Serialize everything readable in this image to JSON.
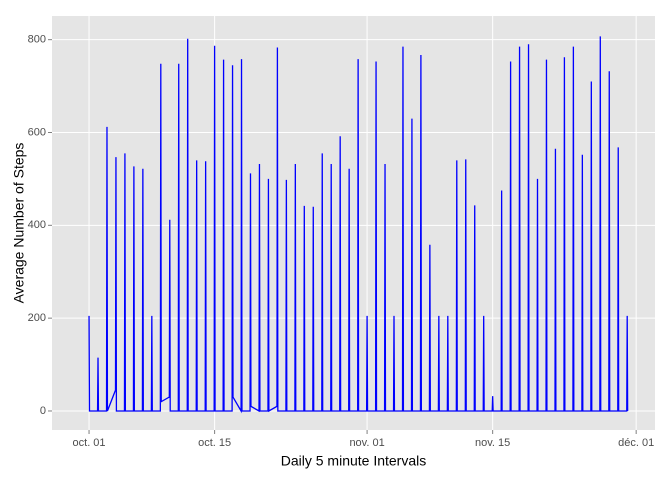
{
  "chart_data": {
    "type": "line",
    "x_label": "Daily 5 minute Intervals",
    "y_label": "Average Number of Steps",
    "x": [
      0,
      0.05,
      0.95,
      1,
      1.05,
      1.95,
      2,
      2.05,
      2.95,
      3,
      3.05,
      3.95,
      4,
      4.05,
      4.95,
      5,
      5.05,
      5.95,
      6,
      6.05,
      6.95,
      7,
      7.05,
      7.95,
      8,
      8.05,
      8.95,
      9,
      9.05,
      9.95,
      10,
      10.05,
      10.95,
      11,
      11.05,
      11.95,
      12,
      12.05,
      12.95,
      13,
      13.05,
      13.95,
      14,
      14.05,
      14.95,
      15,
      15.05,
      15.95,
      16,
      16.05,
      16.95,
      17,
      17.05,
      17.95,
      18,
      18.05,
      18.95,
      19,
      19.05,
      19.95,
      20,
      20.05,
      20.95,
      21,
      21.05,
      21.95,
      22,
      22.05,
      22.95,
      23,
      23.05,
      23.95,
      24,
      24.05,
      24.95,
      25,
      25.05,
      25.95,
      26,
      26.05,
      26.95,
      27,
      27.05,
      27.95,
      28,
      28.05,
      28.95,
      29,
      29.05,
      29.95,
      30,
      30.05,
      30.95,
      31,
      31.05,
      31.95,
      32,
      32.05,
      32.95,
      33,
      33.05,
      33.95,
      34,
      34.05,
      34.95,
      35,
      35.05,
      35.95,
      36,
      36.05,
      36.95,
      37,
      37.05,
      37.95,
      38,
      38.05,
      38.95,
      39,
      39.05,
      39.95,
      40,
      40.05,
      40.95,
      41,
      41.05,
      41.95,
      42,
      42.05,
      42.95,
      43,
      43.05,
      43.95,
      44,
      44.05,
      44.95,
      45,
      45.05,
      45.95,
      46,
      46.05,
      46.95,
      47,
      47.05,
      47.95,
      48,
      48.05,
      48.95,
      49,
      49.05,
      49.95,
      50,
      50.05,
      50.95,
      51,
      51.05,
      51.95,
      52,
      52.05,
      52.95,
      53,
      53.05,
      53.95,
      54,
      54.05,
      54.95,
      55,
      55.05,
      55.95,
      56,
      56.05,
      56.95,
      57,
      57.05,
      57.95,
      58,
      58.05,
      58.95,
      59,
      59.05,
      59.95,
      60,
      60.05
    ],
    "series": [
      {
        "color": "#0000ff",
        "values": [
          205,
          0,
          0,
          115,
          0,
          0,
          612,
          0,
          45,
          547,
          0,
          0,
          555,
          0,
          0,
          527,
          0,
          0,
          522,
          0,
          0,
          205,
          0,
          0,
          748,
          20,
          30,
          412,
          0,
          0,
          748,
          0,
          0,
          802,
          0,
          0,
          540,
          0,
          0,
          538,
          0,
          0,
          787,
          0,
          0,
          757,
          0,
          0,
          745,
          30,
          0,
          758,
          0,
          0,
          512,
          10,
          0,
          532,
          0,
          0,
          500,
          0,
          10,
          783,
          0,
          0,
          498,
          0,
          0,
          532,
          0,
          0,
          442,
          0,
          0,
          440,
          0,
          0,
          555,
          0,
          0,
          532,
          0,
          0,
          592,
          0,
          0,
          522,
          0,
          0,
          758,
          0,
          0,
          205,
          0,
          0,
          753,
          0,
          0,
          532,
          0,
          0,
          205,
          0,
          0,
          785,
          0,
          0,
          630,
          0,
          0,
          767,
          0,
          0,
          358,
          0,
          0,
          205,
          0,
          0,
          205,
          0,
          0,
          540,
          0,
          0,
          542,
          0,
          0,
          443,
          0,
          0,
          205,
          0,
          0,
          32,
          0,
          0,
          475,
          0,
          0,
          753,
          0,
          0,
          785,
          0,
          0,
          790,
          0,
          0,
          500,
          0,
          0,
          757,
          0,
          0,
          565,
          0,
          0,
          762,
          0,
          0,
          785,
          0,
          0,
          552,
          0,
          0,
          710,
          0,
          0,
          807,
          0,
          0,
          732,
          0,
          0,
          568,
          0,
          0,
          205,
          0
        ]
      }
    ],
    "xlim": [
      -4.13,
      63.1
    ],
    "ylim": [
      -41,
      851
    ],
    "xticks": [
      {
        "value": 0,
        "label": "oct. 01"
      },
      {
        "value": 14,
        "label": "oct. 15"
      },
      {
        "value": 31,
        "label": "nov. 01"
      },
      {
        "value": 45,
        "label": "nov. 15"
      },
      {
        "value": 61,
        "label": "déc. 01"
      }
    ],
    "yticks": [
      0,
      200,
      400,
      600,
      800
    ],
    "grid": true
  }
}
